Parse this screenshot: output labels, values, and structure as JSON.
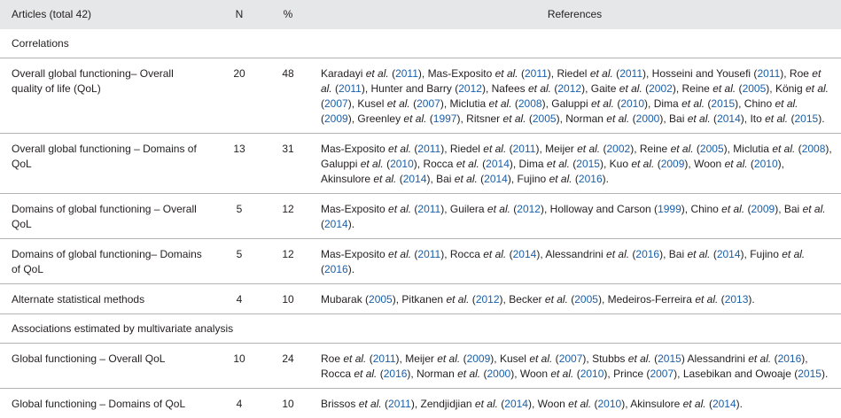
{
  "header": {
    "col1": "Articles (total 42)",
    "col2": "N",
    "col3": "%",
    "col4": "References"
  },
  "sections": [
    {
      "title": "Correlations",
      "rows": [
        {
          "label": "Overall global functioning– Overall quality of life (QoL)",
          "n": "20",
          "pct": "48",
          "refs": [
            {
              "a": "Karadayi",
              "e": true,
              "y": "2011"
            },
            {
              "a": "Mas-Exposito",
              "e": true,
              "y": "2011"
            },
            {
              "a": "Riedel",
              "e": true,
              "y": "2011"
            },
            {
              "a": "Hosseini and Yousefi",
              "e": false,
              "y": "2011"
            },
            {
              "a": "Roe",
              "e": true,
              "y": "2011"
            },
            {
              "a": "Hunter and Barry",
              "e": false,
              "y": "2012"
            },
            {
              "a": "Nafees",
              "e": true,
              "y": "2012"
            },
            {
              "a": "Gaite",
              "e": true,
              "y": "2002"
            },
            {
              "a": "Reine",
              "e": true,
              "y": "2005"
            },
            {
              "a": "König",
              "e": true,
              "y": "2007"
            },
            {
              "a": "Kusel",
              "e": true,
              "y": "2007"
            },
            {
              "a": "Miclutia",
              "e": true,
              "y": "2008"
            },
            {
              "a": "Galuppi",
              "e": true,
              "y": "2010"
            },
            {
              "a": "Dima",
              "e": true,
              "y": "2015"
            },
            {
              "a": "Chino",
              "e": true,
              "y": "2009"
            },
            {
              "a": "Greenley",
              "e": true,
              "y": "1997"
            },
            {
              "a": "Ritsner",
              "e": true,
              "y": "2005"
            },
            {
              "a": "Norman",
              "e": true,
              "y": "2000"
            },
            {
              "a": "Bai",
              "e": true,
              "y": "2014"
            },
            {
              "a": "Ito",
              "e": true,
              "y": "2015"
            }
          ]
        },
        {
          "label": "Overall global functioning – Domains of QoL",
          "n": "13",
          "pct": "31",
          "refs": [
            {
              "a": "Mas-Exposito",
              "e": true,
              "y": "2011"
            },
            {
              "a": "Riedel",
              "e": true,
              "y": "2011"
            },
            {
              "a": "Meijer",
              "e": true,
              "y": "2002"
            },
            {
              "a": "Reine",
              "e": true,
              "y": "2005"
            },
            {
              "a": "Miclutia",
              "e": true,
              "y": "2008"
            },
            {
              "a": "Galuppi",
              "e": true,
              "y": "2010"
            },
            {
              "a": "Rocca",
              "e": true,
              "y": "2014"
            },
            {
              "a": "Dima",
              "e": true,
              "y": "2015"
            },
            {
              "a": "Kuo",
              "e": true,
              "y": "2009"
            },
            {
              "a": "Woon",
              "e": true,
              "y": "2010"
            },
            {
              "a": "Akinsulore",
              "e": true,
              "y": "2014"
            },
            {
              "a": "Bai",
              "e": true,
              "y": "2014"
            },
            {
              "a": "Fujino",
              "e": true,
              "y": "2016"
            }
          ]
        },
        {
          "label": "Domains of global functioning – Overall QoL",
          "n": "5",
          "pct": "12",
          "refs": [
            {
              "a": "Mas-Exposito",
              "e": true,
              "y": "2011"
            },
            {
              "a": "Guilera",
              "e": true,
              "y": "2012"
            },
            {
              "a": "Holloway and Carson",
              "e": false,
              "y": "1999"
            },
            {
              "a": "Chino",
              "e": true,
              "y": "2009"
            },
            {
              "a": "Bai",
              "e": true,
              "y": "2014"
            }
          ]
        },
        {
          "label": "Domains of global functioning– Domains of QoL",
          "n": "5",
          "pct": "12",
          "refs": [
            {
              "a": "Mas-Exposito",
              "e": true,
              "y": "2011"
            },
            {
              "a": "Rocca",
              "e": true,
              "y": "2014"
            },
            {
              "a": "Alessandrini",
              "e": true,
              "y": "2016"
            },
            {
              "a": "Bai",
              "e": true,
              "y": "2014"
            },
            {
              "a": "Fujino",
              "e": true,
              "y": "2016"
            }
          ]
        },
        {
          "label": "Alternate statistical methods",
          "n": "4",
          "pct": "10",
          "refs": [
            {
              "a": "Mubarak",
              "e": false,
              "y": "2005"
            },
            {
              "a": "Pitkanen",
              "e": true,
              "y": "2012"
            },
            {
              "a": "Becker",
              "e": true,
              "y": "2005"
            },
            {
              "a": "Medeiros-Ferreira",
              "e": true,
              "y": "2013"
            }
          ]
        }
      ]
    },
    {
      "title": "Associations estimated by multivariate analysis",
      "rows": [
        {
          "label": "Global functioning – Overall QoL",
          "n": "10",
          "pct": "24",
          "refs": [
            {
              "a": "Roe",
              "e": true,
              "y": "2011"
            },
            {
              "a": "Meijer",
              "e": true,
              "y": "2009"
            },
            {
              "a": "Kusel",
              "e": true,
              "y": "2007"
            },
            {
              "a": "Stubbs",
              "e": true,
              "y": "2015",
              "sep": " "
            },
            {
              "a": "Alessandrini",
              "e": true,
              "y": "2016"
            },
            {
              "a": "Rocca",
              "e": true,
              "y": "2016"
            },
            {
              "a": "Norman",
              "e": true,
              "y": "2000"
            },
            {
              "a": "Woon",
              "e": true,
              "y": "2010"
            },
            {
              "a": "Prince",
              "e": false,
              "y": "2007"
            },
            {
              "a": "Lasebikan and Owoaje",
              "e": false,
              "y": "2015"
            }
          ]
        },
        {
          "label": "Global functioning – Domains of QoL",
          "n": "4",
          "pct": "10",
          "refs": [
            {
              "a": "Brissos",
              "e": true,
              "y": "2011"
            },
            {
              "a": "Zendjidjian",
              "e": true,
              "y": "2014"
            },
            {
              "a": "Woon",
              "e": true,
              "y": "2010"
            },
            {
              "a": "Akinsulore",
              "e": true,
              "y": "2014"
            }
          ]
        }
      ]
    }
  ]
}
